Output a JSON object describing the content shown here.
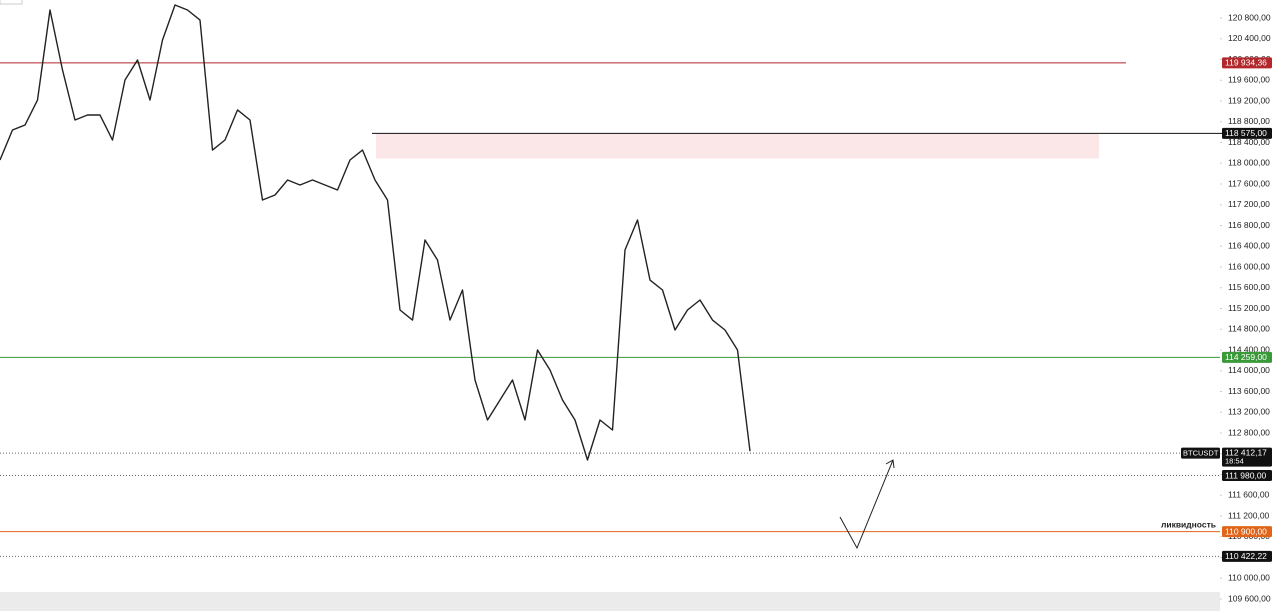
{
  "chart_data": {
    "type": "line",
    "symbol_note": "ликвидность",
    "categories": [
      null,
      null,
      null,
      null,
      null,
      null,
      null,
      null,
      null,
      null,
      null,
      null,
      null,
      null,
      null,
      null,
      null,
      null,
      null,
      null,
      null,
      null,
      null,
      null,
      null,
      null,
      null,
      null,
      null,
      null,
      null,
      null,
      null,
      null,
      null,
      null,
      null,
      null,
      null,
      null,
      null,
      null,
      null,
      null,
      null,
      null,
      null,
      null,
      null,
      null,
      null,
      null,
      null,
      null,
      null,
      null,
      null,
      null,
      null,
      null,
      null
    ],
    "values": [
      118063,
      118641,
      118737,
      119219,
      120954,
      119798,
      118834,
      118930,
      118930,
      118448,
      119605,
      119990,
      119219,
      120376,
      121051,
      120954,
      120761,
      118255,
      118448,
      119027,
      118834,
      117292,
      117388,
      117677,
      117581,
      117677,
      117581,
      117484,
      118063,
      118255,
      117677,
      117292,
      115171,
      114978,
      116521,
      116135,
      114978,
      115557,
      113822,
      113051,
      113436,
      113822,
      113051,
      114400,
      114014,
      113436,
      113051,
      112280,
      113051,
      112858,
      116328,
      116906,
      115749,
      115557,
      114786,
      115171,
      115364,
      114978,
      114786,
      114400,
      112450
    ],
    "color": "#222222",
    "ylim": [
      109369,
      121147
    ],
    "yticks": [
      {
        "value": 109600,
        "label": "109 600,00"
      },
      {
        "value": 110000,
        "label": "110 000,00"
      },
      {
        "value": 110400,
        "label": "110 400,00"
      },
      {
        "value": 110800,
        "label": "110 800,00"
      },
      {
        "value": 111200,
        "label": "111 200,00"
      },
      {
        "value": 111600,
        "label": "111 600,00"
      },
      {
        "value": 112000,
        "label": "112 000,00"
      },
      {
        "value": 112400,
        "label": "112 400,00"
      },
      {
        "value": 112800,
        "label": "112 800,00"
      },
      {
        "value": 113200,
        "label": "113 200,00"
      },
      {
        "value": 113600,
        "label": "113 600,00"
      },
      {
        "value": 114000,
        "label": "114 000,00"
      },
      {
        "value": 114400,
        "label": "114 400,00"
      },
      {
        "value": 114800,
        "label": "114 800,00"
      },
      {
        "value": 115200,
        "label": "115 200,00"
      },
      {
        "value": 115600,
        "label": "115 600,00"
      },
      {
        "value": 116000,
        "label": "116 000,00"
      },
      {
        "value": 116400,
        "label": "116 400,00"
      },
      {
        "value": 116800,
        "label": "116 800,00"
      },
      {
        "value": 117200,
        "label": "117 200,00"
      },
      {
        "value": 117600,
        "label": "117 600,00"
      },
      {
        "value": 118000,
        "label": "118 000,00"
      },
      {
        "value": 118400,
        "label": "118 400,00"
      },
      {
        "value": 118800,
        "label": "118 800,00"
      },
      {
        "value": 119200,
        "label": "119 200,00"
      },
      {
        "value": 119600,
        "label": "119 600,00"
      },
      {
        "value": 120000,
        "label": "120 000,00"
      },
      {
        "value": 120400,
        "label": "120 400,00"
      },
      {
        "value": 120800,
        "label": "120 800,00"
      }
    ],
    "zone": {
      "from": 118575,
      "to": 118090,
      "color": "#fbe6e8"
    },
    "levels": [
      {
        "value": 119934.36,
        "label": "119 934,36",
        "color": "#b2282b",
        "style": "solid"
      },
      {
        "value": 118575,
        "label": "118 575,00",
        "color": "#111111",
        "style": "solid"
      },
      {
        "value": 114259,
        "label": "114 259,00",
        "color": "#3a9a3a",
        "style": "solid"
      },
      {
        "value": 111980,
        "label": "111 980,00",
        "color": "#111111",
        "style": "dotted"
      },
      {
        "value": 110900,
        "label": "110 900,00",
        "color": "#e0651a",
        "style": "solid"
      },
      {
        "value": 110422.22,
        "label": "110 422,22",
        "color": "#111111",
        "style": "dotted"
      }
    ],
    "last_price": {
      "symbol": "BTCUSDT",
      "value": 112412.17,
      "label": "112 412,17",
      "countdown": "18:54",
      "color": "#111111"
    }
  }
}
